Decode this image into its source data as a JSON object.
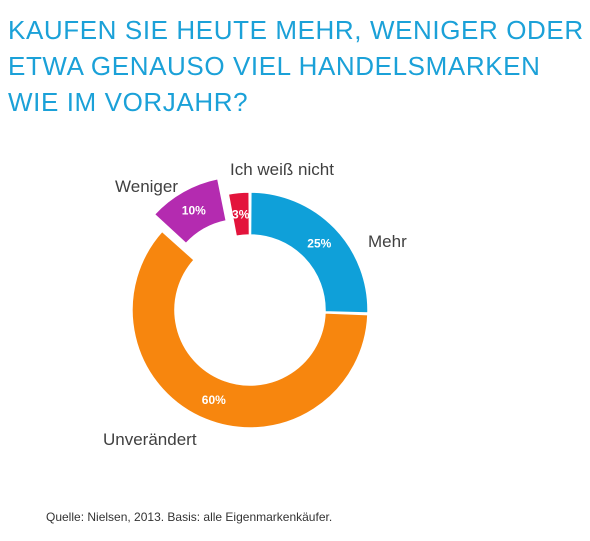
{
  "title_lines": [
    "KAUFEN SIE HEUTE MEHR, WENIGER ODER",
    "ETWA GENAUSO VIEL HANDELSMARKEN",
    "WIE IM VORJAHR?"
  ],
  "source": "Quelle: Nielsen, 2013. Basis: alle Eigenmarkenkäufer.",
  "chart_data": {
    "type": "pie",
    "variant": "donut",
    "title": "KAUFEN SIE HEUTE MEHR, WENIGER ODER ETWA GENAUSO VIEL HANDELSMARKEN WIE IM VORJAHR?",
    "categories": [
      "Mehr",
      "Unverändert",
      "Weniger",
      "Ich weiß nicht"
    ],
    "values": [
      25,
      60,
      10,
      3
    ],
    "data_labels": [
      "25%",
      "60%",
      "10%",
      "3%"
    ],
    "colors": [
      "#0fa0d9",
      "#f7860e",
      "#b42bb0",
      "#e3143c"
    ],
    "exploded": [
      "Weniger"
    ],
    "legend": "none"
  }
}
